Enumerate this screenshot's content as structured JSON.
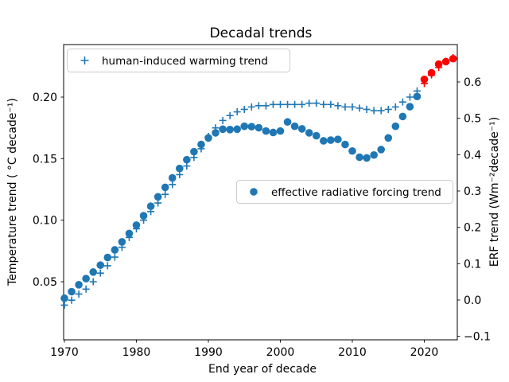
{
  "chart_data": {
    "type": "scatter",
    "title": "Decadal trends",
    "xlabel": "End year of decade",
    "ylabel_left": "Temperature trend ( °C decade⁻¹)",
    "ylabel_right": "ERF trend (Wm⁻²decade⁻¹)",
    "x_start": 1970,
    "x_end": 2024,
    "x_step": 1,
    "xlim": [
      1969.9,
      2024.6
    ],
    "ylim_left": [
      0.003,
      0.243
    ],
    "ylim_right": [
      -0.109,
      0.703
    ],
    "x_ticks": [
      1970,
      1980,
      1990,
      2000,
      2010,
      2020
    ],
    "x_tick_labels": [
      "1970",
      "1980",
      "1990",
      "2000",
      "2010",
      "2020"
    ],
    "y_ticks_left": [
      0.05,
      0.1,
      0.15,
      0.2
    ],
    "y_tick_labels_left": [
      "0.05",
      "0.10",
      "0.15",
      "0.20"
    ],
    "y_ticks_right": [
      -0.1,
      0.0,
      0.1,
      0.2,
      0.3,
      0.4,
      0.5,
      0.6
    ],
    "y_tick_labels_right": [
      "−0.1",
      "0.0",
      "0.1",
      "0.2",
      "0.3",
      "0.4",
      "0.5",
      "0.6"
    ],
    "grid": false,
    "legend_positions": [
      "upper-left",
      "center-right"
    ],
    "series": [
      {
        "name": "human-induced warming trend",
        "marker": "plus",
        "axis": "left",
        "color": "#1f77b4",
        "highlight_color": "#ff0000",
        "highlight_from_year": 2020,
        "values": [
          0.031,
          0.035,
          0.04,
          0.044,
          0.05,
          0.057,
          0.063,
          0.07,
          0.078,
          0.086,
          0.093,
          0.1,
          0.107,
          0.114,
          0.121,
          0.129,
          0.137,
          0.144,
          0.151,
          0.158,
          0.168,
          0.175,
          0.181,
          0.185,
          0.188,
          0.19,
          0.192,
          0.193,
          0.193,
          0.194,
          0.194,
          0.194,
          0.194,
          0.194,
          0.195,
          0.195,
          0.194,
          0.194,
          0.193,
          0.192,
          0.192,
          0.191,
          0.19,
          0.189,
          0.189,
          0.19,
          0.192,
          0.196,
          0.2,
          0.205,
          0.211,
          0.218,
          0.224,
          0.229,
          0.232
        ]
      },
      {
        "name": "effective radiative forcing trend",
        "marker": "circle",
        "axis": "right",
        "color": "#1f77b4",
        "highlight_color": "#ff0000",
        "highlight_from_year": 2020,
        "values": [
          0.005,
          0.023,
          0.042,
          0.059,
          0.077,
          0.096,
          0.117,
          0.138,
          0.16,
          0.183,
          0.206,
          0.232,
          0.258,
          0.284,
          0.31,
          0.336,
          0.362,
          0.386,
          0.408,
          0.428,
          0.446,
          0.46,
          0.47,
          0.469,
          0.47,
          0.478,
          0.477,
          0.474,
          0.465,
          0.461,
          0.465,
          0.49,
          0.478,
          0.471,
          0.46,
          0.452,
          0.438,
          0.44,
          0.442,
          0.428,
          0.41,
          0.393,
          0.391,
          0.399,
          0.414,
          0.446,
          0.478,
          0.505,
          0.532,
          0.56,
          0.607,
          0.625,
          0.649,
          0.656,
          0.664
        ]
      }
    ],
    "legend": {
      "warming_label": "human-induced warming trend",
      "erf_label": "effective radiative forcing trend"
    }
  },
  "colors": {
    "series_blue": "#1f77b4",
    "highlight_red": "#ff0000",
    "axes": "#000000",
    "legend_border": "#cccccc",
    "background": "#ffffff"
  }
}
